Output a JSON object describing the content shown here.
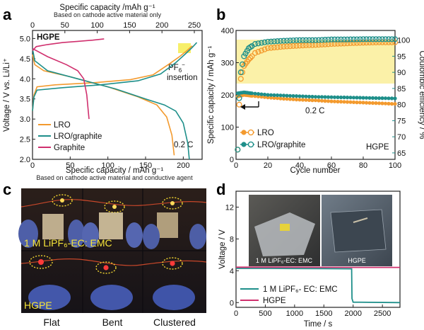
{
  "panels": {
    "a": {
      "letter": "a",
      "top_axis_title": "Specific capacity /mAh g⁻¹",
      "top_axis_note": "Based on cathode active material only",
      "top_ticks": [
        "0",
        "50",
        "100",
        "150",
        "200",
        "250"
      ],
      "bottom_axis_title": "Specific capacity / mAh g⁻¹",
      "bottom_axis_note": "Based on cathode active material and conductive agent",
      "bottom_ticks": [
        "0",
        "50",
        "100",
        "150",
        "200"
      ],
      "y_axis_title": "Voltage / V vs. Li/Li⁺",
      "y_ticks": [
        "2.0",
        "2.5",
        "3.0",
        "3.5",
        "4.0",
        "4.5",
        "5.0"
      ],
      "tag": "HGPE",
      "annotation_line1": "PF",
      "annotation_sub": "6",
      "annotation_sup": "−",
      "annotation_line2": "insertion",
      "rate": "0.2 C",
      "legend": [
        {
          "label": "LRO",
          "color": "#f39a2e"
        },
        {
          "label": "LRO/graphite",
          "color": "#1e8f8a"
        },
        {
          "label": "Graphite",
          "color": "#d0306e"
        }
      ]
    },
    "b": {
      "letter": "b",
      "x_axis_title": "Cycle number",
      "x_ticks": [
        "0",
        "20",
        "40",
        "60",
        "80",
        "100"
      ],
      "y_axis_title": "Specific capacity / mAh g⁻¹",
      "y_ticks": [
        "0",
        "100",
        "200",
        "300",
        "400"
      ],
      "y2_axis_title": "Coulombic efficiency / %",
      "y2_ticks": [
        "65",
        "70",
        "75",
        "80",
        "85",
        "90",
        "95",
        "100"
      ],
      "rate": "0.2 C",
      "tag": "HGPE",
      "legend": [
        {
          "label": "LRO",
          "color": "#f39a2e"
        },
        {
          "label": "LRO/graphite",
          "color": "#1e8f8a"
        }
      ]
    },
    "c": {
      "letter": "c",
      "electrolyte_label": "1 M LiPF₆-EC: EMC",
      "gel_label": "HGPE",
      "captions": [
        "Flat",
        "Bent",
        "Clustered"
      ]
    },
    "d": {
      "letter": "d",
      "x_axis_title": "Time / s",
      "x_ticks": [
        "0",
        "500",
        "1000",
        "1500",
        "2000",
        "2500"
      ],
      "y_axis_title": "Voltage / V",
      "y_ticks": [
        "0",
        "4",
        "8",
        "12"
      ],
      "inset_left_label": "1 M LiPF₆-EC: EMC",
      "inset_right_label": "HGPE",
      "legend": [
        {
          "label": "1 M LiPF₆- EC: EMC",
          "color": "#1e8f8a"
        },
        {
          "label": "HGPE",
          "color": "#d0306e"
        }
      ]
    }
  },
  "chart_data": [
    {
      "panel": "a",
      "type": "line",
      "title": "",
      "xlabel": "Specific capacity / mAh g-1",
      "ylabel": "Voltage / V vs. Li/Li+",
      "xlim": [
        0,
        225
      ],
      "ylim": [
        2.0,
        5.2
      ],
      "series": [
        {
          "name": "LRO charge",
          "color": "#f39a2e",
          "points": [
            [
              0,
              3.2
            ],
            [
              2,
              3.6
            ],
            [
              6,
              3.8
            ],
            [
              30,
              3.85
            ],
            [
              80,
              3.9
            ],
            [
              130,
              3.98
            ],
            [
              160,
              4.1
            ],
            [
              180,
              4.35
            ],
            [
              195,
              4.55
            ],
            [
              205,
              4.7
            ],
            [
              212,
              4.82
            ]
          ]
        },
        {
          "name": "LRO discharge",
          "color": "#f39a2e",
          "points": [
            [
              0,
              4.6
            ],
            [
              3,
              4.35
            ],
            [
              15,
              4.2
            ],
            [
              50,
              4.05
            ],
            [
              100,
              3.8
            ],
            [
              140,
              3.55
            ],
            [
              165,
              3.35
            ],
            [
              178,
              3.05
            ],
            [
              185,
              2.6
            ],
            [
              188,
              2.1
            ]
          ]
        },
        {
          "name": "LRO/graphite charge",
          "color": "#1e8f8a",
          "points": [
            [
              0,
              3.2
            ],
            [
              2,
              3.55
            ],
            [
              6,
              3.72
            ],
            [
              40,
              3.78
            ],
            [
              90,
              3.85
            ],
            [
              140,
              3.95
            ],
            [
              170,
              4.12
            ],
            [
              190,
              4.4
            ],
            [
              203,
              4.62
            ],
            [
              212,
              4.78
            ],
            [
              218,
              4.9
            ]
          ]
        },
        {
          "name": "LRO/graphite discharge",
          "color": "#1e8f8a",
          "points": [
            [
              0,
              4.75
            ],
            [
              3,
              4.45
            ],
            [
              20,
              4.2
            ],
            [
              60,
              4.0
            ],
            [
              110,
              3.75
            ],
            [
              150,
              3.5
            ],
            [
              175,
              3.35
            ],
            [
              190,
              3.2
            ],
            [
              200,
              2.9
            ],
            [
              206,
              2.4
            ],
            [
              208,
              2.0
            ]
          ]
        },
        {
          "name": "Graphite charge",
          "color": "#d0306e",
          "points": [
            [
              0,
              4.7
            ],
            [
              5,
              4.8
            ],
            [
              20,
              4.85
            ],
            [
              40,
              4.9
            ],
            [
              60,
              4.93
            ],
            [
              80,
              4.96
            ],
            [
              95,
              4.99
            ]
          ]
        },
        {
          "name": "Graphite discharge",
          "color": "#d0306e",
          "points": [
            [
              0,
              4.75
            ],
            [
              20,
              4.55
            ],
            [
              45,
              4.35
            ],
            [
              60,
              4.2
            ],
            [
              68,
              4.0
            ],
            [
              72,
              3.6
            ],
            [
              74,
              3.2
            ],
            [
              75,
              3.0
            ]
          ]
        }
      ]
    },
    {
      "panel": "b",
      "type": "scatter",
      "xlabel": "Cycle number",
      "ylabel": "Specific capacity / mAh g-1",
      "y2label": "Coulombic efficiency / %",
      "xlim": [
        0,
        100
      ],
      "ylim": [
        0,
        400
      ],
      "y2lim": [
        63,
        103
      ],
      "series": [
        {
          "name": "LRO capacity",
          "color": "#f39a2e",
          "axis": "left",
          "points": [
            [
              1,
              195
            ],
            [
              5,
              200
            ],
            [
              10,
              197
            ],
            [
              20,
              192
            ],
            [
              30,
              188
            ],
            [
              40,
              185
            ],
            [
              50,
              183
            ],
            [
              60,
              180
            ],
            [
              70,
              178
            ],
            [
              80,
              176
            ],
            [
              90,
              174
            ],
            [
              100,
              172
            ]
          ]
        },
        {
          "name": "LRO/graphite capacity",
          "color": "#1e8f8a",
          "axis": "left",
          "points": [
            [
              1,
              205
            ],
            [
              5,
              208
            ],
            [
              10,
              205
            ],
            [
              20,
              200
            ],
            [
              30,
              198
            ],
            [
              40,
              196
            ],
            [
              50,
              194
            ],
            [
              60,
              193
            ],
            [
              70,
              192
            ],
            [
              80,
              191
            ],
            [
              90,
              190
            ],
            [
              100,
              189
            ]
          ]
        },
        {
          "name": "LRO coulombic efficiency",
          "color": "#f39a2e",
          "axis": "right",
          "points": [
            [
              1,
              66
            ],
            [
              2,
              80
            ],
            [
              3,
              88
            ],
            [
              5,
              92
            ],
            [
              8,
              94
            ],
            [
              12,
              96
            ],
            [
              20,
              97.5
            ],
            [
              30,
              98
            ],
            [
              40,
              98.3
            ],
            [
              50,
              98.5
            ],
            [
              60,
              98.8
            ],
            [
              70,
              99
            ],
            [
              80,
              99.2
            ],
            [
              90,
              99.3
            ],
            [
              100,
              99.3
            ]
          ]
        },
        {
          "name": "LRO/graphite coulombic efficiency",
          "color": "#1e8f8a",
          "axis": "right",
          "points": [
            [
              1,
              66
            ],
            [
              2,
              82
            ],
            [
              3,
              90
            ],
            [
              5,
              95
            ],
            [
              8,
              97.5
            ],
            [
              12,
              98.8
            ],
            [
              20,
              99.5
            ],
            [
              30,
              99.8
            ],
            [
              40,
              100
            ],
            [
              50,
              100
            ],
            [
              60,
              100.2
            ],
            [
              70,
              100.2
            ],
            [
              80,
              100.3
            ],
            [
              90,
              100.3
            ],
            [
              100,
              100.3
            ]
          ]
        }
      ]
    },
    {
      "panel": "d",
      "type": "line",
      "xlabel": "Time / s",
      "ylabel": "Voltage / V",
      "xlim": [
        0,
        2800
      ],
      "ylim": [
        -0.6,
        14
      ],
      "series": [
        {
          "name": "1 M LiPF6- EC: EMC",
          "color": "#1e8f8a",
          "points": [
            [
              0,
              4.3
            ],
            [
              500,
              4.3
            ],
            [
              1000,
              4.28
            ],
            [
              1500,
              4.26
            ],
            [
              1950,
              4.24
            ],
            [
              1975,
              4.24
            ],
            [
              1980,
              0.5
            ],
            [
              2000,
              0.05
            ],
            [
              2800,
              0.0
            ]
          ]
        },
        {
          "name": "HGPE",
          "color": "#d0306e",
          "points": [
            [
              0,
              4.45
            ],
            [
              500,
              4.45
            ],
            [
              1000,
              4.44
            ],
            [
              1500,
              4.43
            ],
            [
              2000,
              4.42
            ],
            [
              2500,
              4.42
            ],
            [
              2800,
              4.42
            ]
          ]
        }
      ]
    }
  ]
}
